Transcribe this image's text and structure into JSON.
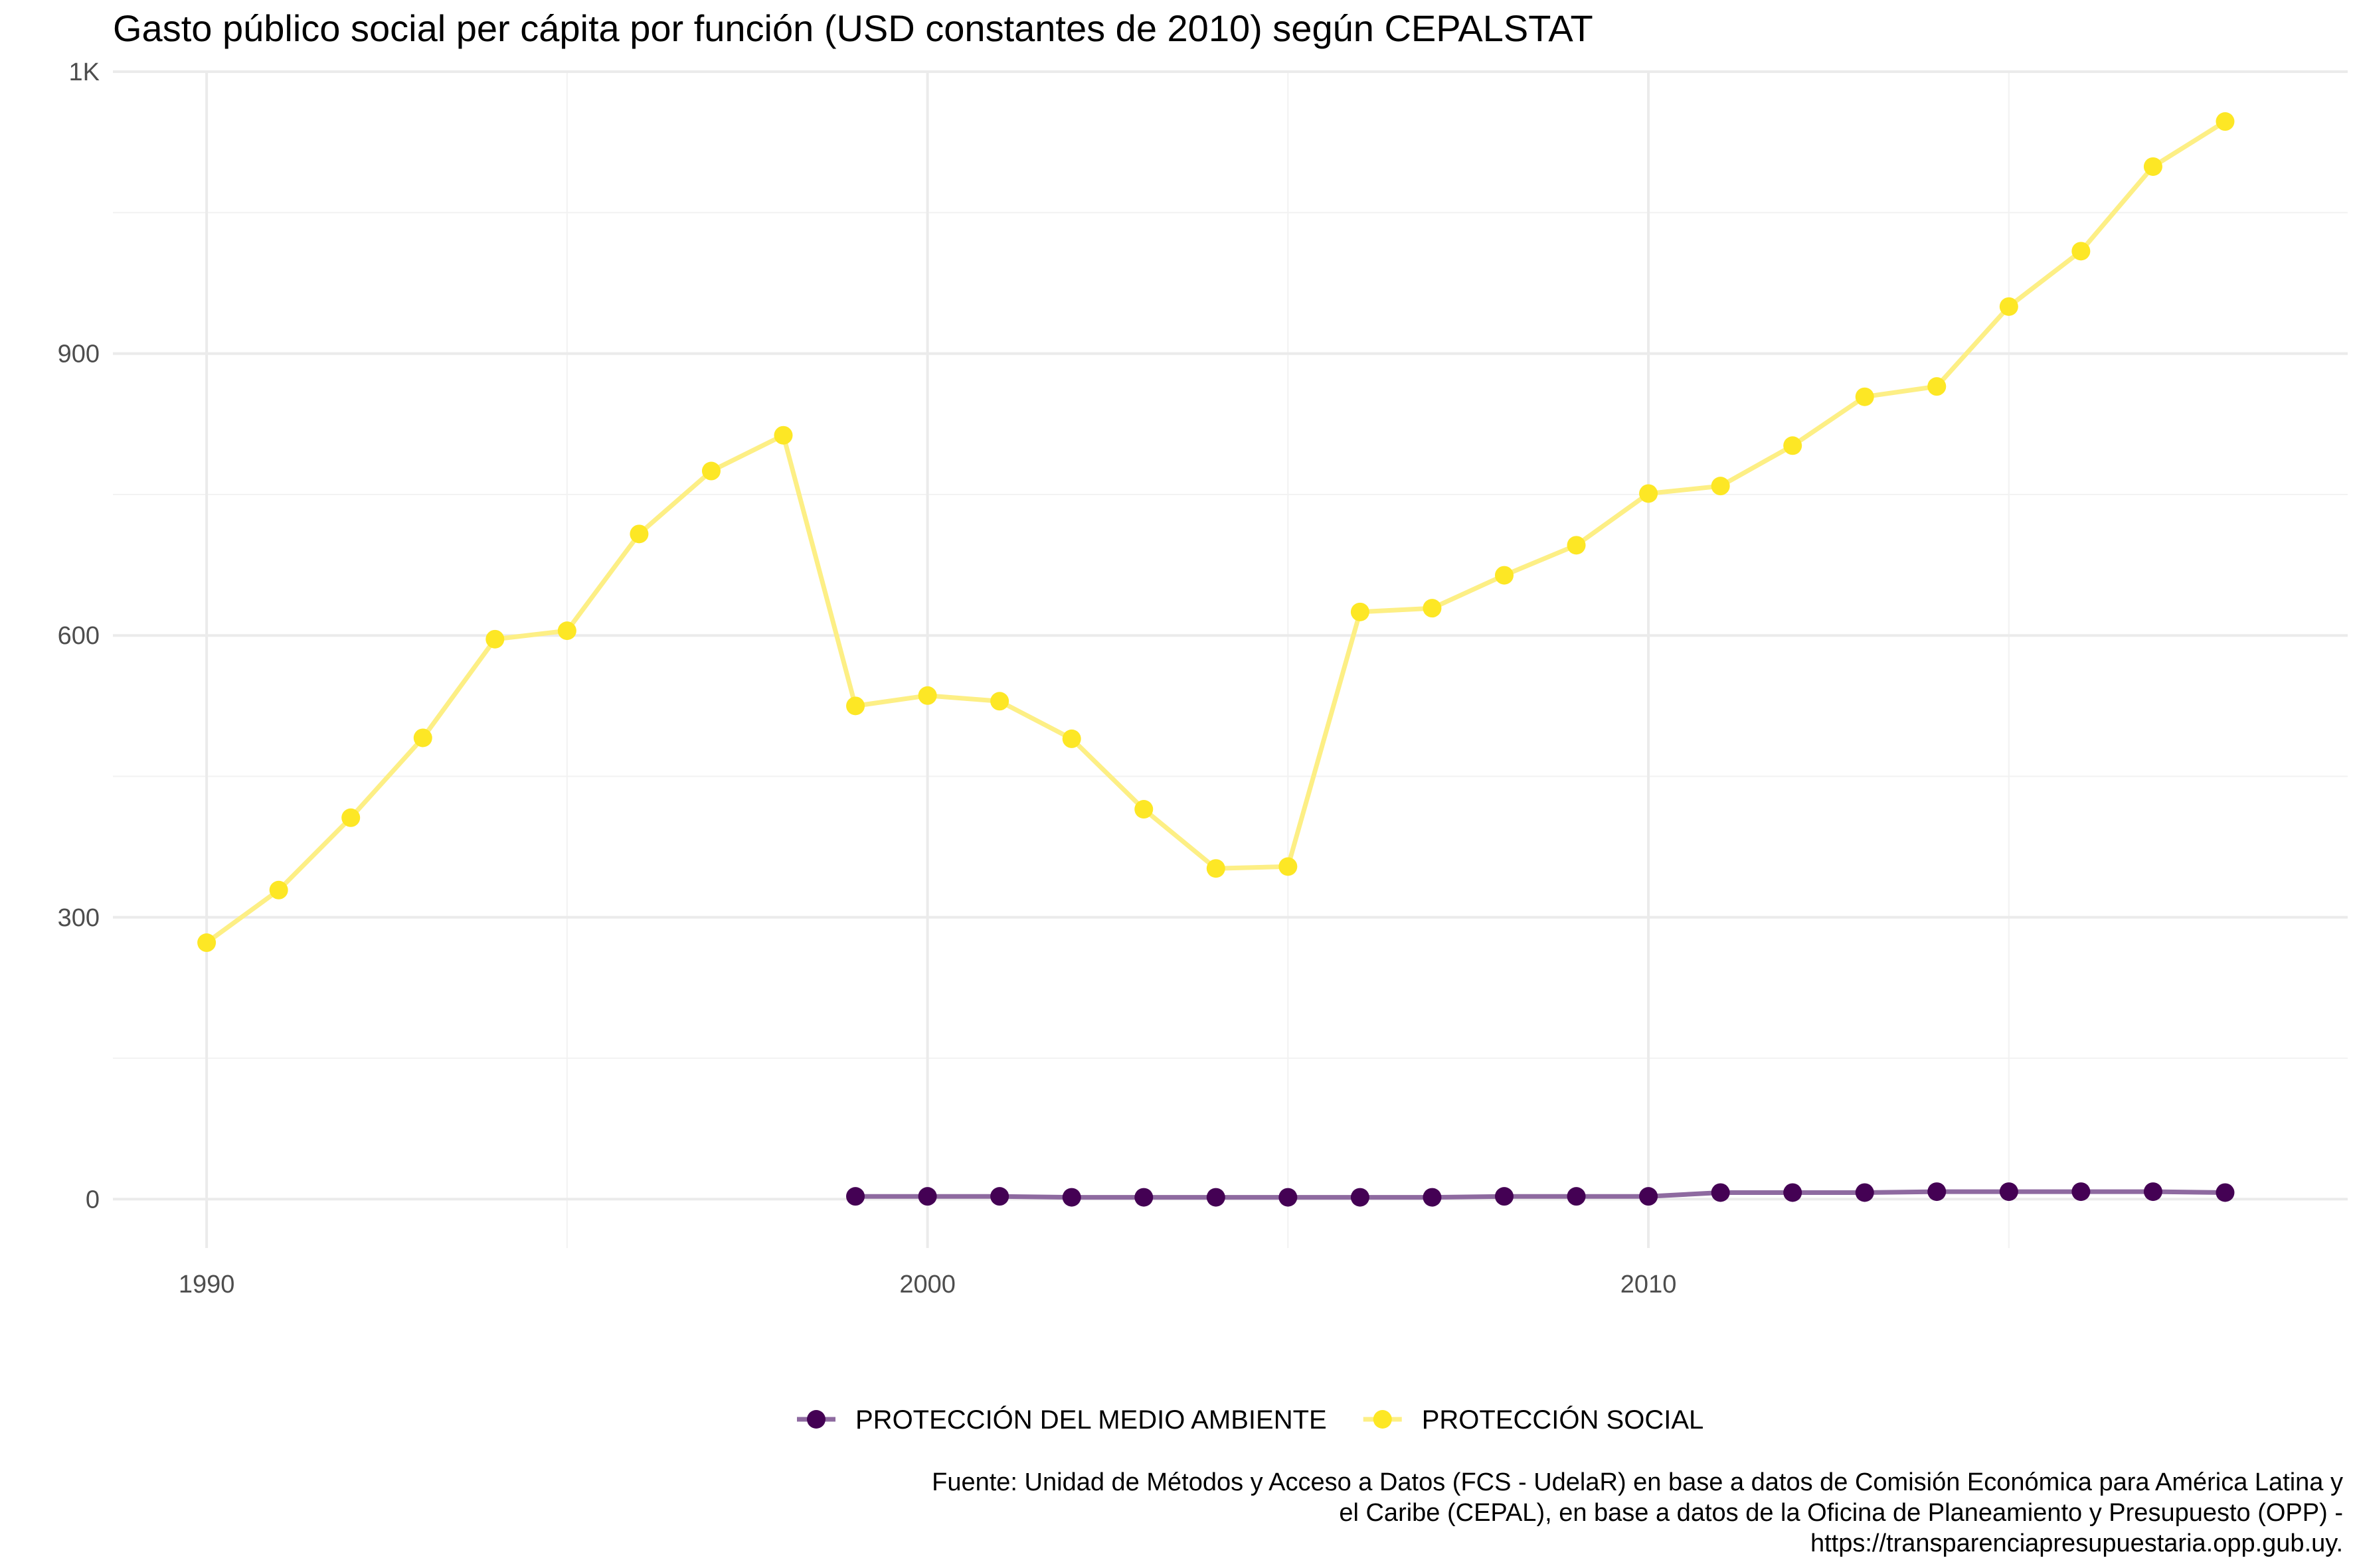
{
  "chart_data": {
    "type": "line",
    "title": "Gasto público social per cápita por función (USD constantes de 2010) según CEPALSTAT",
    "xlabel": "",
    "ylabel": "",
    "x_ticks": [
      {
        "value": 1990,
        "label": "1990"
      },
      {
        "value": 2000,
        "label": "2000"
      },
      {
        "value": 2010,
        "label": "2010"
      }
    ],
    "y_ticks": [
      {
        "value": 0,
        "label": "0"
      },
      {
        "value": 300,
        "label": "300"
      },
      {
        "value": 600,
        "label": "600"
      },
      {
        "value": 900,
        "label": "900"
      },
      {
        "value": 1200,
        "label": "1K"
      }
    ],
    "xlim": [
      1988.7,
      2019.7
    ],
    "ylim": [
      -52,
      1200
    ],
    "grid": true,
    "legend_position": "bottom",
    "series": [
      {
        "name": "PROTECCIÓN DEL MEDIO AMBIENTE",
        "color": "#440154",
        "line_color": "#8e6aa0",
        "points": [
          {
            "x": 1999,
            "y": 3
          },
          {
            "x": 2000,
            "y": 3
          },
          {
            "x": 2001,
            "y": 3
          },
          {
            "x": 2002,
            "y": 2
          },
          {
            "x": 2003,
            "y": 2
          },
          {
            "x": 2004,
            "y": 2
          },
          {
            "x": 2005,
            "y": 2
          },
          {
            "x": 2006,
            "y": 2
          },
          {
            "x": 2007,
            "y": 2
          },
          {
            "x": 2008,
            "y": 3
          },
          {
            "x": 2009,
            "y": 3
          },
          {
            "x": 2010,
            "y": 3
          },
          {
            "x": 2011,
            "y": 7
          },
          {
            "x": 2012,
            "y": 7
          },
          {
            "x": 2013,
            "y": 7
          },
          {
            "x": 2014,
            "y": 8
          },
          {
            "x": 2015,
            "y": 8
          },
          {
            "x": 2016,
            "y": 8
          },
          {
            "x": 2017,
            "y": 8
          },
          {
            "x": 2018,
            "y": 7
          }
        ]
      },
      {
        "name": "PROTECCIÓN SOCIAL",
        "color": "#fde725",
        "line_color": "#fdef85",
        "points": [
          {
            "x": 1990,
            "y": 273
          },
          {
            "x": 1991,
            "y": 329
          },
          {
            "x": 1992,
            "y": 406
          },
          {
            "x": 1993,
            "y": 491
          },
          {
            "x": 1994,
            "y": 596
          },
          {
            "x": 1995,
            "y": 605
          },
          {
            "x": 1996,
            "y": 708
          },
          {
            "x": 1997,
            "y": 775
          },
          {
            "x": 1998,
            "y": 813
          },
          {
            "x": 1999,
            "y": 525
          },
          {
            "x": 2000,
            "y": 536
          },
          {
            "x": 2001,
            "y": 530
          },
          {
            "x": 2002,
            "y": 490
          },
          {
            "x": 2003,
            "y": 415
          },
          {
            "x": 2004,
            "y": 352
          },
          {
            "x": 2005,
            "y": 354
          },
          {
            "x": 2006,
            "y": 625
          },
          {
            "x": 2007,
            "y": 629
          },
          {
            "x": 2008,
            "y": 664
          },
          {
            "x": 2009,
            "y": 696
          },
          {
            "x": 2010,
            "y": 751
          },
          {
            "x": 2011,
            "y": 759
          },
          {
            "x": 2012,
            "y": 802
          },
          {
            "x": 2013,
            "y": 854
          },
          {
            "x": 2014,
            "y": 865
          },
          {
            "x": 2015,
            "y": 950
          },
          {
            "x": 2016,
            "y": 1009
          },
          {
            "x": 2017,
            "y": 1099
          },
          {
            "x": 2018,
            "y": 1147
          }
        ]
      }
    ],
    "caption": [
      "Fuente: Unidad de Métodos y Acceso a Datos (FCS - UdelaR) en base a datos de Comisión Económica para América Latina y",
      "el Caribe (CEPAL), en base a datos de la Oficina de Planeamiento y Presupuesto (OPP) -",
      "https://transparenciapresupuestaria.opp.gub.uy."
    ]
  }
}
